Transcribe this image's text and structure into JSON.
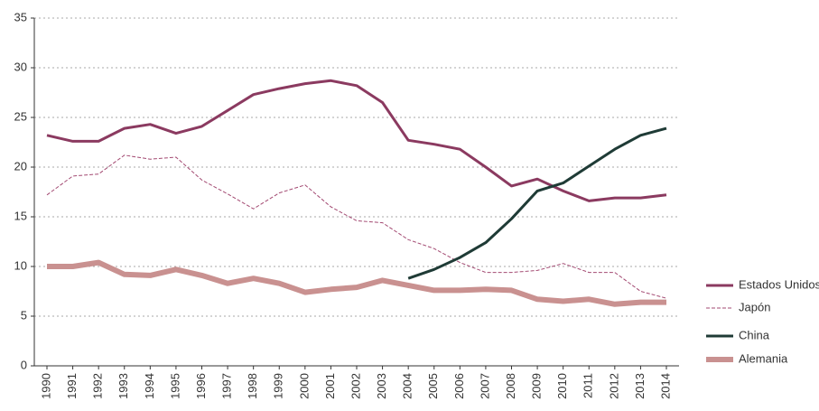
{
  "chart_data": {
    "type": "line",
    "categories": [
      "1990",
      "1991",
      "1992",
      "1993",
      "1994",
      "1995",
      "1996",
      "1997",
      "1998",
      "1999",
      "2000",
      "2001",
      "2002",
      "2003",
      "2004",
      "2005",
      "2006",
      "2007",
      "2008",
      "2009",
      "2010",
      "2011",
      "2012",
      "2013",
      "2014"
    ],
    "series": [
      {
        "name": "Estados Unidos",
        "color": "#8b3a60",
        "width": 3,
        "dashed": false,
        "values": [
          23.2,
          22.6,
          22.6,
          23.9,
          24.3,
          23.4,
          24.1,
          25.7,
          27.3,
          27.9,
          28.4,
          28.7,
          28.2,
          26.5,
          22.7,
          22.3,
          21.8,
          20.0,
          18.1,
          18.8,
          17.6,
          16.6,
          16.9,
          16.9,
          17.2
        ]
      },
      {
        "name": "Japón",
        "color": "#a34a72",
        "width": 1,
        "dashed": true,
        "values": [
          17.2,
          19.1,
          19.3,
          21.2,
          20.8,
          21.0,
          18.7,
          17.3,
          15.8,
          17.4,
          18.2,
          16.0,
          14.6,
          14.4,
          12.7,
          11.8,
          10.4,
          9.4,
          9.4,
          9.6,
          10.3,
          9.4,
          9.4,
          7.5,
          6.8
        ]
      },
      {
        "name": "China",
        "color": "#1f3b36",
        "width": 3,
        "dashed": false,
        "values": [
          null,
          null,
          null,
          null,
          null,
          null,
          null,
          null,
          null,
          null,
          null,
          null,
          null,
          null,
          8.8,
          9.7,
          10.9,
          12.4,
          14.8,
          17.6,
          18.4,
          20.1,
          21.8,
          23.2,
          23.9
        ]
      },
      {
        "name": "Alemania",
        "color": "#c99190",
        "width": 6,
        "dashed": false,
        "values": [
          10.0,
          10.0,
          10.4,
          9.2,
          9.1,
          9.7,
          9.1,
          8.3,
          8.8,
          8.3,
          7.4,
          7.7,
          7.9,
          8.6,
          8.1,
          7.6,
          7.6,
          7.7,
          7.6,
          6.7,
          6.5,
          6.7,
          6.2,
          6.4,
          6.4
        ]
      }
    ],
    "ylim": [
      0,
      35
    ],
    "yticks": [
      0,
      5,
      10,
      15,
      20,
      25,
      30,
      35
    ],
    "grid": true,
    "legend": "right"
  }
}
